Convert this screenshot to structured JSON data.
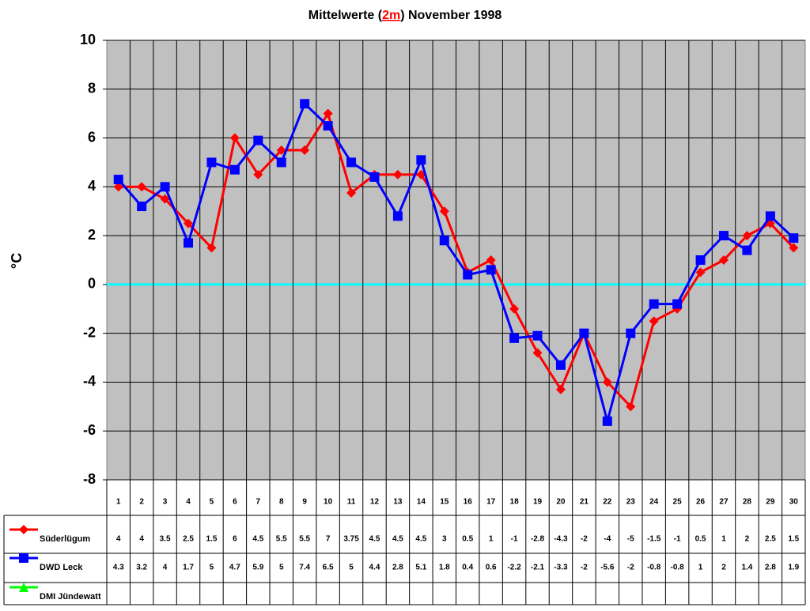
{
  "chart_data": {
    "type": "line",
    "title": {
      "before": "Mittelwerte (",
      "highlight": "2m",
      "after": ") November 1998"
    },
    "y_label": "°C",
    "categories": [
      "1",
      "2",
      "3",
      "4",
      "5",
      "6",
      "7",
      "8",
      "9",
      "10",
      "11",
      "12",
      "13",
      "14",
      "15",
      "16",
      "17",
      "18",
      "19",
      "20",
      "21",
      "22",
      "23",
      "24",
      "25",
      "26",
      "27",
      "28",
      "29",
      "30"
    ],
    "series": [
      {
        "name": "Süderlügum",
        "color": "#ff0000",
        "marker": "diamond",
        "values": [
          4,
          4,
          3.5,
          2.5,
          1.5,
          6,
          4.5,
          5.5,
          5.5,
          7,
          3.75,
          4.5,
          4.5,
          4.5,
          3,
          0.5,
          1,
          -1,
          -2.8,
          -4.3,
          -2,
          -4,
          -5,
          -1.5,
          -1,
          0.5,
          1,
          2,
          2.5,
          1.5
        ]
      },
      {
        "name": "DWD Leck",
        "color": "#0000ff",
        "marker": "square",
        "values": [
          4.3,
          3.2,
          4,
          1.7,
          5,
          4.7,
          5.9,
          5,
          7.4,
          6.5,
          5,
          4.4,
          2.8,
          5.1,
          1.8,
          0.4,
          0.6,
          -2.2,
          -2.1,
          -3.3,
          -2,
          -5.6,
          -2,
          -0.8,
          -0.8,
          1,
          2,
          1.4,
          2.8,
          1.9
        ]
      },
      {
        "name": "DMI Jündewatt",
        "color": "#00ff00",
        "marker": "triangle",
        "values": [
          null,
          null,
          null,
          null,
          null,
          null,
          null,
          null,
          null,
          null,
          null,
          null,
          null,
          null,
          null,
          null,
          null,
          null,
          null,
          null,
          null,
          null,
          null,
          null,
          null,
          null,
          null,
          null,
          null,
          null
        ]
      }
    ],
    "ylim": [
      -8,
      10
    ],
    "yticks": [
      -8,
      -6,
      -4,
      -2,
      0,
      2,
      4,
      6,
      8,
      10
    ],
    "grid": true,
    "zero_line_color": "#00ffff",
    "plot_background": "#c0c0c0",
    "data_table": true
  }
}
